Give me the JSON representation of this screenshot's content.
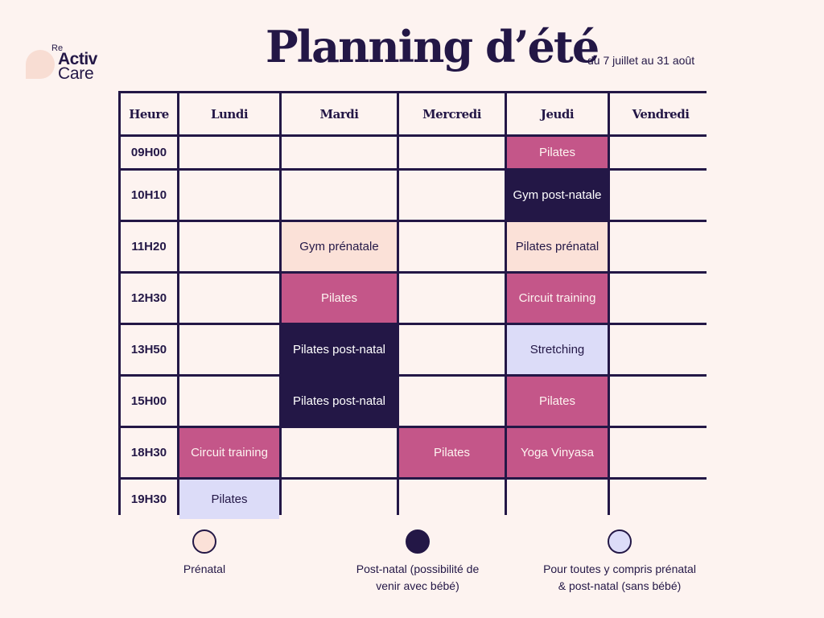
{
  "logo": {
    "re": "Re",
    "activ": "Activ",
    "care": "Care"
  },
  "title": "Planning d’été",
  "subtitle": "du 7 juillet au 31 août",
  "headers": [
    "Heure",
    "Lundi",
    "Mardi",
    "Mercredi",
    "Jeudi",
    "Vendredi"
  ],
  "times": [
    "09H00",
    "10H10",
    "11H20",
    "12H30",
    "13H50",
    "15H00",
    "18H30",
    "19H30"
  ],
  "classes": {
    "jeudi_0900": "Pilates",
    "jeudi_1010": "Gym post-natale",
    "mardi_1120": "Gym prénatale",
    "jeudi_1120": "Pilates prénatal",
    "mardi_1230": "Pilates",
    "jeudi_1230": "Circuit training",
    "mardi_1350": "Pilates post-natal",
    "jeudi_1350": "Stretching",
    "mardi_1500": "Pilates post-natal",
    "jeudi_1500": "Pilates",
    "lundi_1830": "Circuit training",
    "mercredi_1830": "Pilates",
    "jeudi_1830": "Yoga Vinyasa",
    "lundi_1930": "Pilates"
  },
  "legend": {
    "prenatal": "Prénatal",
    "postnatal_line1": "Post-natal (possibilité de",
    "postnatal_line2": "venir avec  bébé)",
    "all_line1": "Pour toutes y compris prénatal",
    "all_line2": "& post-natal (sans bébé)"
  },
  "colors": {
    "background": "#fdf3f0",
    "navy": "#231746",
    "pink": "#c45689",
    "peach": "#fbe1d8",
    "lavender": "#dcdcf8"
  }
}
